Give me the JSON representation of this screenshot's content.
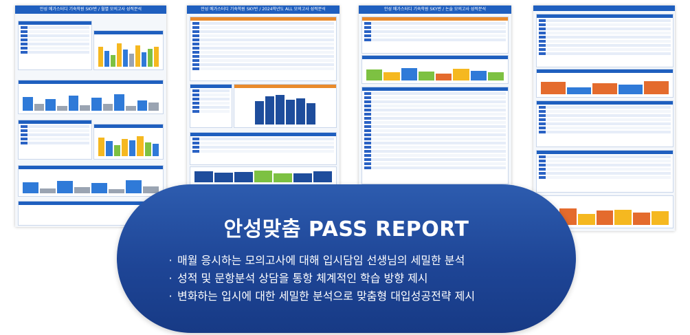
{
  "sheets": [
    {
      "title": "안성 메가스터디 기숙학원 SKY반 / 월별 모의고사 성적분석"
    },
    {
      "title": "안성 메가스터디 기숙학원 SKY반 / 2024학년도 ALL 모의고사 성적분석"
    },
    {
      "title": "안성 메가스터디 기숙학원 SKY반 / 논술 모의고사 성적분석"
    },
    {
      "title": ""
    }
  ],
  "banner": {
    "title": "안성맞춤 PASS REPORT",
    "bullet_glyph": "·",
    "items": [
      "매월 응시하는 모의고사에 대해 입시담임 선생님의 세밀한 분석",
      "성적 및 문항분석 상담을 통항 체계적인 학습 방향 제시",
      "변화하는 입시에 대한 세밀한 분석으로 맞춤형 대입성공전략 제시"
    ]
  },
  "colors": {
    "banner_top": "#2d5caf",
    "banner_bottom": "#173a85",
    "sheet_header": "#1f5fbf",
    "accent_orange": "#e98a2b"
  }
}
